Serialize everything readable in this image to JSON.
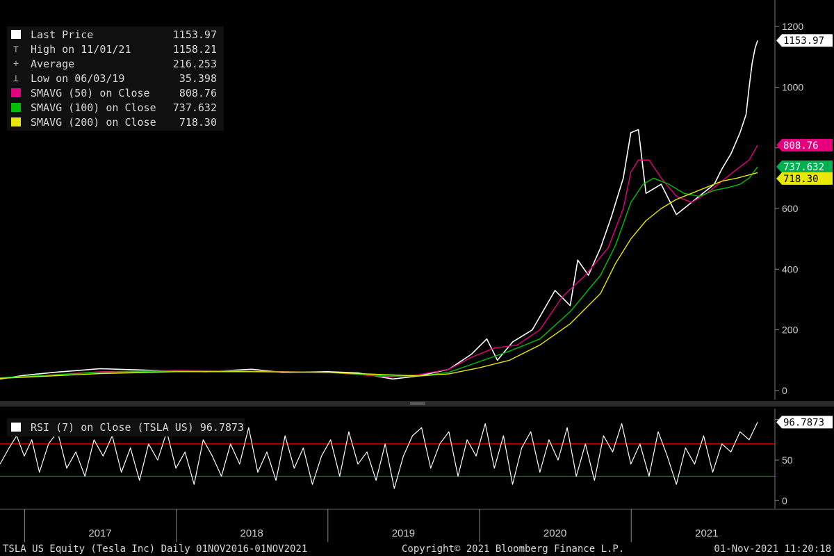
{
  "chart_data": {
    "type": "line",
    "price_panel": {
      "ylim": [
        -30,
        1230
      ],
      "yticks": [
        0,
        200,
        400,
        600,
        800,
        1000,
        1200
      ],
      "legend": [
        {
          "label": "Last Price",
          "value": "1153.97",
          "color": "#ffffff",
          "glyph": "swatch"
        },
        {
          "label": "High on 11/01/21",
          "value": "1158.21",
          "color": "#bbbbbb",
          "glyph": "⊤"
        },
        {
          "label": "Average",
          "value": "216.253",
          "color": "#bbbbbb",
          "glyph": "+"
        },
        {
          "label": "Low on 06/03/19",
          "value": "35.398",
          "color": "#bbbbbb",
          "glyph": "⊥"
        },
        {
          "label": "SMAVG (50)  on Close",
          "value": "808.76",
          "color": "#e6007e",
          "glyph": "swatch"
        },
        {
          "label": "SMAVG (100)  on Close",
          "value": "737.632",
          "color": "#00c000",
          "glyph": "swatch"
        },
        {
          "label": "SMAVG (200)  on Close",
          "value": "718.30",
          "color": "#e8e800",
          "glyph": "swatch"
        }
      ],
      "right_labels": [
        {
          "text": "1153.97",
          "value": 1153.97,
          "bg": "#ffffff",
          "fg": "#000000"
        },
        {
          "text": "808.76",
          "value": 808.76,
          "bg": "#e6007e",
          "fg": "#ffffff"
        },
        {
          "text": "737.632",
          "value": 737.632,
          "bg": "#00b050",
          "fg": "#ffffff"
        },
        {
          "text": "718.30",
          "value": 718.3,
          "bg": "#e8e800",
          "fg": "#000000"
        }
      ],
      "series": [
        {
          "name": "Last Price",
          "color": "#ffffff",
          "x": [
            2016.84,
            2017.0,
            2017.2,
            2017.5,
            2017.75,
            2018.0,
            2018.2,
            2018.5,
            2018.7,
            2019.0,
            2019.2,
            2019.43,
            2019.6,
            2019.8,
            2019.95,
            2020.05,
            2020.12,
            2020.22,
            2020.35,
            2020.5,
            2020.6,
            2020.65,
            2020.72,
            2020.8,
            2020.87,
            2020.95,
            2021.0,
            2021.05,
            2021.1,
            2021.2,
            2021.3,
            2021.35,
            2021.45,
            2021.55,
            2021.6,
            2021.66,
            2021.72,
            2021.76,
            2021.78,
            2021.8,
            2021.82,
            2021.836
          ],
          "y": [
            38,
            50,
            60,
            72,
            68,
            64,
            62,
            70,
            60,
            62,
            58,
            38,
            48,
            70,
            120,
            170,
            100,
            160,
            200,
            330,
            280,
            430,
            380,
            470,
            570,
            700,
            850,
            860,
            650,
            680,
            580,
            600,
            640,
            680,
            730,
            780,
            850,
            910,
            1000,
            1080,
            1130,
            1153.97
          ]
        },
        {
          "name": "SMAVG (50)",
          "color": "#e6007e",
          "x": [
            2016.84,
            2017.5,
            2018.0,
            2018.5,
            2019.0,
            2019.4,
            2019.6,
            2019.8,
            2019.95,
            2020.1,
            2020.25,
            2020.4,
            2020.55,
            2020.7,
            2020.85,
            2020.95,
            2021.0,
            2021.05,
            2021.12,
            2021.2,
            2021.3,
            2021.4,
            2021.5,
            2021.6,
            2021.7,
            2021.78,
            2021.836
          ],
          "y": [
            40,
            62,
            66,
            64,
            60,
            45,
            52,
            70,
            110,
            140,
            150,
            200,
            310,
            380,
            470,
            600,
            720,
            760,
            760,
            700,
            640,
            620,
            650,
            690,
            730,
            760,
            808.76
          ]
        },
        {
          "name": "SMAVG (100)",
          "color": "#00c000",
          "x": [
            2016.84,
            2017.5,
            2018.0,
            2018.5,
            2019.0,
            2019.4,
            2019.6,
            2019.8,
            2020.0,
            2020.2,
            2020.4,
            2020.6,
            2020.8,
            2020.9,
            2021.0,
            2021.08,
            2021.15,
            2021.25,
            2021.35,
            2021.45,
            2021.55,
            2021.65,
            2021.72,
            2021.78,
            2021.836
          ],
          "y": [
            42,
            60,
            64,
            62,
            60,
            48,
            48,
            60,
            95,
            130,
            170,
            260,
            380,
            480,
            620,
            680,
            700,
            680,
            650,
            640,
            660,
            670,
            680,
            700,
            737.632
          ]
        },
        {
          "name": "SMAVG (200)",
          "color": "#e8e800",
          "x": [
            2016.84,
            2017.5,
            2018.0,
            2018.5,
            2019.0,
            2019.4,
            2019.6,
            2019.8,
            2020.0,
            2020.2,
            2020.4,
            2020.6,
            2020.8,
            2020.9,
            2021.0,
            2021.1,
            2021.2,
            2021.3,
            2021.4,
            2021.5,
            2021.6,
            2021.7,
            2021.836
          ],
          "y": [
            40,
            56,
            62,
            62,
            60,
            52,
            48,
            55,
            75,
            100,
            150,
            220,
            320,
            420,
            500,
            560,
            600,
            630,
            650,
            670,
            690,
            700,
            718.3
          ]
        }
      ]
    },
    "rsi_panel": {
      "legend_label": "RSI (7)  on Close (TSLA US) 96.7873",
      "value_label": "96.7873",
      "ylim": [
        -10,
        110
      ],
      "yticks": [
        0,
        50,
        100
      ],
      "overbought": 70,
      "oversold": 30,
      "overbought_color": "#d00000",
      "oversold_color": "#008000",
      "series": {
        "name": "RSI (7)",
        "color": "#ffffff",
        "x": [
          2016.84,
          2016.9,
          2016.95,
          2017.0,
          2017.05,
          2017.1,
          2017.16,
          2017.22,
          2017.28,
          2017.34,
          2017.4,
          2017.46,
          2017.52,
          2017.58,
          2017.64,
          2017.7,
          2017.76,
          2017.82,
          2017.88,
          2017.94,
          2018.0,
          2018.06,
          2018.12,
          2018.18,
          2018.24,
          2018.3,
          2018.36,
          2018.42,
          2018.48,
          2018.54,
          2018.6,
          2018.66,
          2018.72,
          2018.78,
          2018.84,
          2018.9,
          2018.96,
          2019.02,
          2019.08,
          2019.14,
          2019.2,
          2019.26,
          2019.32,
          2019.38,
          2019.44,
          2019.5,
          2019.56,
          2019.62,
          2019.68,
          2019.74,
          2019.8,
          2019.86,
          2019.92,
          2019.98,
          2020.04,
          2020.1,
          2020.16,
          2020.22,
          2020.28,
          2020.34,
          2020.4,
          2020.46,
          2020.52,
          2020.58,
          2020.64,
          2020.7,
          2020.76,
          2020.82,
          2020.88,
          2020.94,
          2021.0,
          2021.06,
          2021.12,
          2021.18,
          2021.24,
          2021.3,
          2021.36,
          2021.42,
          2021.48,
          2021.54,
          2021.6,
          2021.66,
          2021.72,
          2021.78,
          2021.836
        ],
        "y": [
          45,
          65,
          80,
          55,
          75,
          35,
          70,
          85,
          40,
          60,
          30,
          75,
          55,
          80,
          35,
          65,
          25,
          70,
          50,
          85,
          40,
          60,
          20,
          75,
          55,
          30,
          70,
          45,
          90,
          35,
          60,
          25,
          80,
          40,
          65,
          20,
          55,
          75,
          30,
          85,
          45,
          60,
          25,
          70,
          15,
          55,
          80,
          90,
          40,
          70,
          85,
          30,
          75,
          55,
          95,
          40,
          80,
          20,
          65,
          85,
          35,
          75,
          50,
          90,
          30,
          70,
          25,
          80,
          60,
          95,
          45,
          70,
          30,
          85,
          55,
          20,
          65,
          45,
          80,
          35,
          70,
          60,
          85,
          75,
          96.7873
        ]
      }
    },
    "x_axis": {
      "domain": [
        2016.84,
        2021.95
      ],
      "dividers": [
        2017.0,
        2018.0,
        2019.0,
        2020.0,
        2021.0
      ],
      "tick_labels": [
        {
          "text": "2017",
          "x": 2017.5
        },
        {
          "text": "2018",
          "x": 2018.5
        },
        {
          "text": "2019",
          "x": 2019.5
        },
        {
          "text": "2020",
          "x": 2020.5
        },
        {
          "text": "2021",
          "x": 2021.5
        }
      ]
    }
  },
  "footer": {
    "left": "TSLA US Equity (Tesla Inc)  Daily 01NOV2016-01NOV2021",
    "center": "Copyright© 2021 Bloomberg Finance L.P.",
    "right": "01-Nov-2021 11:20:18"
  }
}
